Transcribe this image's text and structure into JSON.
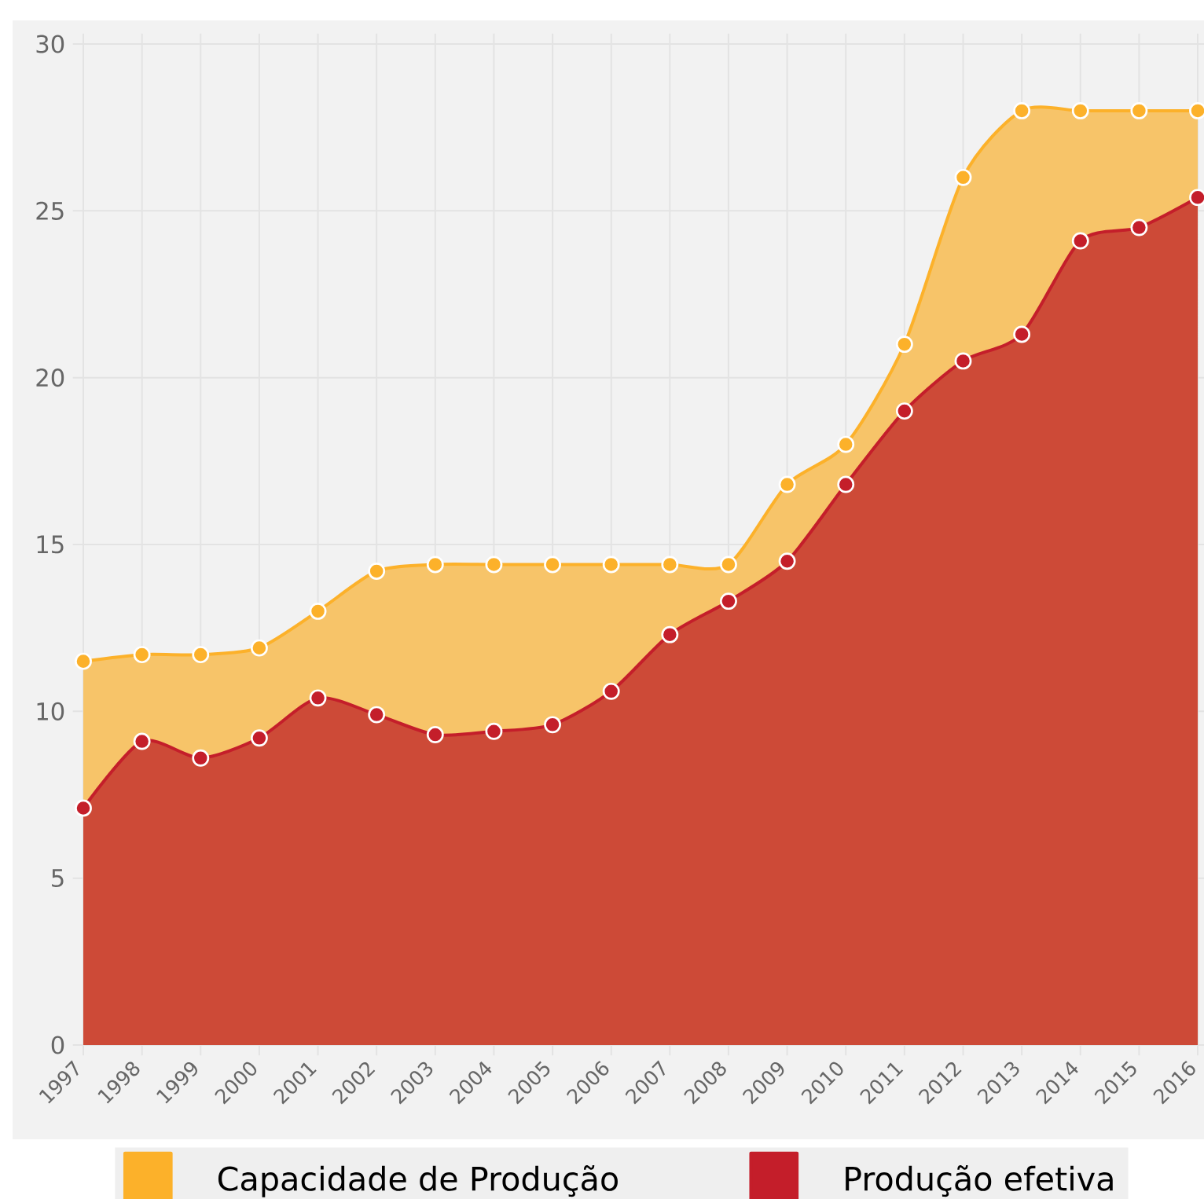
{
  "chart_data": {
    "type": "area",
    "categories": [
      "1997",
      "1998",
      "1999",
      "2000",
      "2001",
      "2002",
      "2003",
      "2004",
      "2005",
      "2006",
      "2007",
      "2008",
      "2009",
      "2010",
      "2011",
      "2012",
      "2013",
      "2014",
      "2015",
      "2016"
    ],
    "series": [
      {
        "name": "Capacidade de Produção",
        "color": "#f7c469",
        "values": [
          11.5,
          11.7,
          11.7,
          11.9,
          13.0,
          14.2,
          14.4,
          14.4,
          14.4,
          14.4,
          14.4,
          14.4,
          16.8,
          18.0,
          21.0,
          26.0,
          28.0,
          28.0,
          28.0,
          28.0
        ]
      },
      {
        "name": "Produção efetiva",
        "color": "#cd4a37",
        "values": [
          7.1,
          9.1,
          8.6,
          9.2,
          10.4,
          9.9,
          9.3,
          9.4,
          9.6,
          10.6,
          12.3,
          13.3,
          14.5,
          16.8,
          19.0,
          20.5,
          21.3,
          24.1,
          24.5,
          25.4
        ]
      }
    ],
    "ylim": [
      0,
      30
    ],
    "yticks": [
      0,
      5,
      10,
      15,
      20,
      25,
      30
    ],
    "grid": true,
    "legend": "bottom",
    "marker": "circle"
  }
}
